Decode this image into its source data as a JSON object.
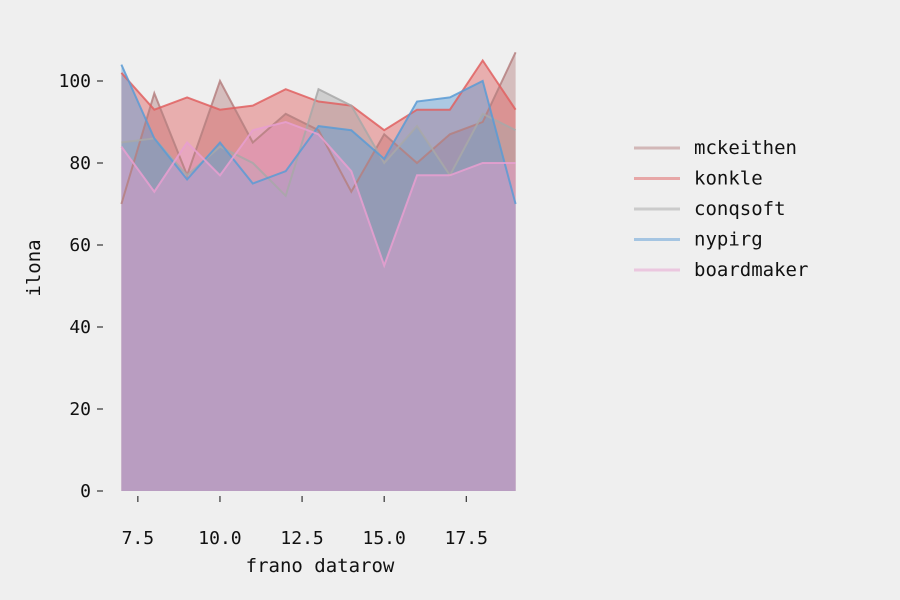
{
  "chart_data": {
    "type": "area",
    "xlabel": "frano datarow",
    "ylabel": "ilona",
    "x": [
      7,
      8,
      9,
      10,
      11,
      12,
      13,
      14,
      15,
      16,
      17,
      18,
      19
    ],
    "xlim": [
      6.5,
      19.5
    ],
    "ylim": [
      0,
      110
    ],
    "xticks": [
      7.5,
      10.0,
      12.5,
      15.0,
      17.5
    ],
    "xtick_labels": [
      "7.5",
      "10.0",
      "12.5",
      "15.0",
      "17.5"
    ],
    "yticks": [
      0,
      20,
      40,
      60,
      80,
      100
    ],
    "ytick_labels": [
      "0",
      "20",
      "40",
      "60",
      "80",
      "100"
    ],
    "grid": false,
    "legend_position": "right",
    "series": [
      {
        "name": "mckeithen",
        "color": "#b58080",
        "values": [
          70,
          97,
          77,
          100,
          85,
          92,
          88,
          73,
          87,
          80,
          87,
          90,
          107
        ]
      },
      {
        "name": "konkle",
        "color": "#e06060",
        "values": [
          102,
          93,
          96,
          93,
          94,
          98,
          95,
          94,
          88,
          93,
          93,
          105,
          93
        ]
      },
      {
        "name": "conqsoft",
        "color": "#a8a8a8",
        "values": [
          85,
          86,
          77,
          84,
          80,
          72,
          98,
          94,
          80,
          89,
          77,
          92,
          88
        ]
      },
      {
        "name": "nypirg",
        "color": "#5b9bd5",
        "values": [
          104,
          86,
          76,
          85,
          75,
          78,
          89,
          88,
          81,
          95,
          96,
          100,
          70
        ]
      },
      {
        "name": "boardmaker",
        "color": "#e79fd0",
        "values": [
          84,
          73,
          85,
          77,
          88,
          90,
          87,
          78,
          55,
          77,
          77,
          80,
          80
        ]
      }
    ]
  }
}
